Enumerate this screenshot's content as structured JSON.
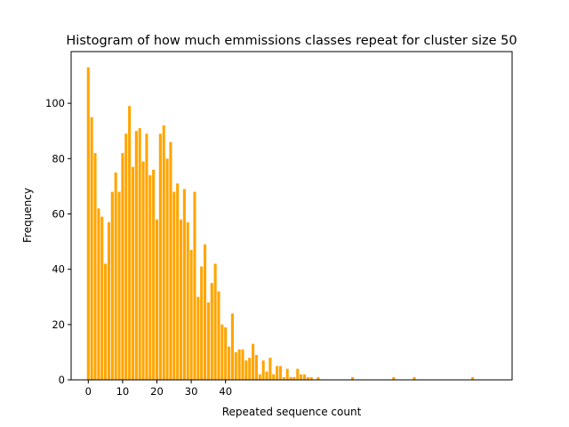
{
  "chart_data": {
    "type": "bar",
    "title": "Histogram of how much emmissions classes repeat for cluster size 50",
    "xlabel": "Repeated sequence count",
    "ylabel": "Frequency",
    "bar_color": "#ffa500",
    "xlim": [
      -5,
      123.5
    ],
    "ylim": [
      0,
      118.7
    ],
    "xticks": [
      0,
      10,
      20,
      30,
      40
    ],
    "yticks": [
      0,
      20,
      40,
      60,
      80,
      100
    ],
    "grid": false,
    "legend": "none",
    "x": [
      0,
      1,
      2,
      3,
      4,
      5,
      6,
      7,
      8,
      9,
      10,
      11,
      12,
      13,
      14,
      15,
      16,
      17,
      18,
      19,
      20,
      21,
      22,
      23,
      24,
      25,
      26,
      27,
      28,
      29,
      30,
      31,
      32,
      33,
      34,
      35,
      36,
      37,
      38,
      39,
      40,
      41,
      42,
      43,
      44,
      45,
      46,
      47,
      48,
      49,
      50,
      51,
      52,
      53,
      54,
      55,
      56,
      57,
      58,
      59,
      60,
      61,
      62,
      63,
      64,
      65,
      66,
      67,
      68,
      69,
      70,
      77,
      89,
      95,
      112
    ],
    "values": [
      113,
      95,
      82,
      62,
      59,
      42,
      57,
      68,
      75,
      68,
      82,
      89,
      99,
      77,
      90,
      91,
      79,
      89,
      74,
      76,
      58,
      89,
      92,
      80,
      86,
      68,
      71,
      58,
      69,
      57,
      47,
      68,
      30,
      41,
      49,
      28,
      35,
      42,
      32,
      20,
      19,
      12,
      24,
      10,
      11,
      11,
      7,
      8,
      13,
      9,
      2,
      7,
      3,
      8,
      2,
      5,
      5,
      1,
      4,
      1,
      1,
      4,
      2,
      2,
      1,
      1,
      0,
      1,
      0,
      0,
      0,
      1,
      1,
      1,
      1
    ]
  }
}
